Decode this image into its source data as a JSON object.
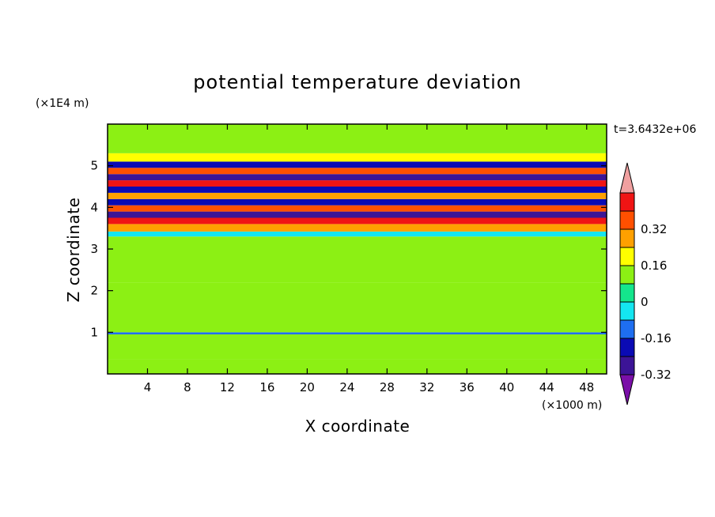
{
  "chart_data": {
    "type": "heatmap",
    "title": "potential temperature deviation",
    "xlabel": "X coordinate",
    "ylabel": "Z coordinate",
    "x_unit": "(×1000 m)",
    "y_unit": "(×1E4 m)",
    "time_label": "t=3.6432e+06",
    "x_ticks": [
      "4",
      "8",
      "12",
      "16",
      "20",
      "24",
      "28",
      "32",
      "36",
      "40",
      "44",
      "48"
    ],
    "y_ticks": [
      "1",
      "2",
      "3",
      "4",
      "5"
    ],
    "xlim": [
      0,
      50
    ],
    "ylim": [
      0,
      6
    ],
    "colorbar": {
      "labels": [
        "0.32",
        "0.16",
        "0",
        "-0.16",
        "-0.32"
      ],
      "label_values": [
        0.32,
        0.16,
        0,
        -0.16,
        -0.32
      ],
      "levels": [
        -0.4,
        -0.32,
        -0.24,
        -0.16,
        -0.08,
        0,
        0.08,
        0.16,
        0.24,
        0.32,
        0.4
      ],
      "colors": [
        "#7a0fa8",
        "#3c1496",
        "#0a0ab4",
        "#1e6ef0",
        "#14e6f0",
        "#14e68c",
        "#8cf014",
        "#ffff00",
        "#ffa000",
        "#ff5000",
        "#f01414",
        "#f0a0a0"
      ]
    },
    "bands": [
      {
        "z": [
          0.0,
          0.35
        ],
        "value": 0.05
      },
      {
        "z": [
          0.35,
          0.95
        ],
        "value": 0.02
      },
      {
        "z": [
          0.95,
          1.0
        ],
        "value": -0.2
      },
      {
        "z": [
          1.0,
          2.2
        ],
        "value": 0.03
      },
      {
        "z": [
          2.2,
          3.3
        ],
        "value": 0.04
      },
      {
        "z": [
          3.3,
          3.42
        ],
        "value": -0.12
      },
      {
        "z": [
          3.42,
          3.6
        ],
        "value": 0.2
      },
      {
        "z": [
          3.6,
          3.75
        ],
        "value": 0.36
      },
      {
        "z": [
          3.75,
          3.9
        ],
        "value": -0.34
      },
      {
        "z": [
          3.9,
          4.05
        ],
        "value": 0.3
      },
      {
        "z": [
          4.05,
          4.2
        ],
        "value": -0.28
      },
      {
        "z": [
          4.2,
          4.35
        ],
        "value": 0.22
      },
      {
        "z": [
          4.35,
          4.5
        ],
        "value": -0.3
      },
      {
        "z": [
          4.5,
          4.65
        ],
        "value": 0.36
      },
      {
        "z": [
          4.65,
          4.8
        ],
        "value": -0.36
      },
      {
        "z": [
          4.8,
          4.95
        ],
        "value": 0.25
      },
      {
        "z": [
          4.95,
          5.1
        ],
        "value": -0.3
      },
      {
        "z": [
          5.1,
          5.3
        ],
        "value": 0.12
      },
      {
        "z": [
          5.3,
          6.0
        ],
        "value": 0.05
      }
    ]
  }
}
